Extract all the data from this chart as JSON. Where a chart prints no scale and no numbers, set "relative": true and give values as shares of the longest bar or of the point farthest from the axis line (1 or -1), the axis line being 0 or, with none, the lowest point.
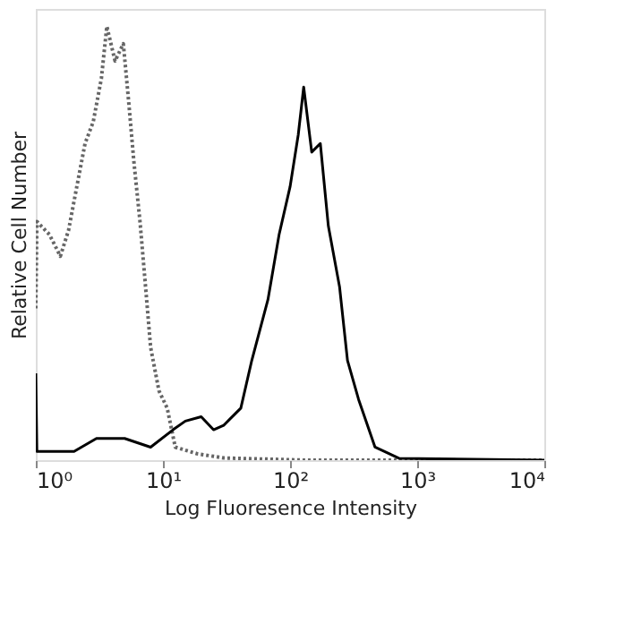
{
  "chart_data": {
    "type": "line",
    "relative": true,
    "xlabel": "Log Fluoresence Intensity",
    "ylabel": "Relative Cell Number",
    "log": "x",
    "grid": false,
    "tick_labels": "x",
    "xlim": [
      1,
      10000
    ],
    "xticks": [
      {
        "value": 1,
        "label": "10⁰"
      },
      {
        "value": 10,
        "label": "10¹"
      },
      {
        "value": 100,
        "label": "10²"
      },
      {
        "value": 1000,
        "label": "10³"
      },
      {
        "value": 10000,
        "label": "10⁴"
      }
    ],
    "series": [
      {
        "color": "#666666",
        "line_style": "dotted",
        "x": [
          1,
          1.02,
          1.28,
          1.56,
          1.81,
          2.1,
          2.44,
          2.83,
          3.28,
          3.62,
          4.2,
          4.88,
          5.4,
          5.9,
          6.6,
          7.2,
          8.0,
          9.3,
          10.8,
          12.5,
          18.5,
          30,
          134,
          10000
        ],
        "values": [
          0.35,
          0.55,
          0.52,
          0.47,
          0.53,
          0.63,
          0.73,
          0.78,
          0.88,
          1,
          0.92,
          0.96,
          0.82,
          0.69,
          0.55,
          0.42,
          0.26,
          0.16,
          0.12,
          0.03,
          0.015,
          0.005,
          0,
          0
        ]
      },
      {
        "color": "#000000",
        "line_style": "solid",
        "x": [
          1,
          1.02,
          2,
          3,
          5,
          8,
          12,
          15,
          20,
          25,
          30,
          41,
          50,
          67,
          82,
          100,
          116,
          128,
          148,
          173,
          200,
          245,
          283,
          346,
          466,
          724,
          10000
        ],
        "values": [
          0.2,
          0.02,
          0.02,
          0.05,
          0.05,
          0.03,
          0.07,
          0.09,
          0.1,
          0.07,
          0.08,
          0.12,
          0.23,
          0.37,
          0.52,
          0.63,
          0.75,
          0.86,
          0.71,
          0.73,
          0.54,
          0.4,
          0.23,
          0.14,
          0.03,
          0.004,
          0
        ]
      }
    ]
  }
}
